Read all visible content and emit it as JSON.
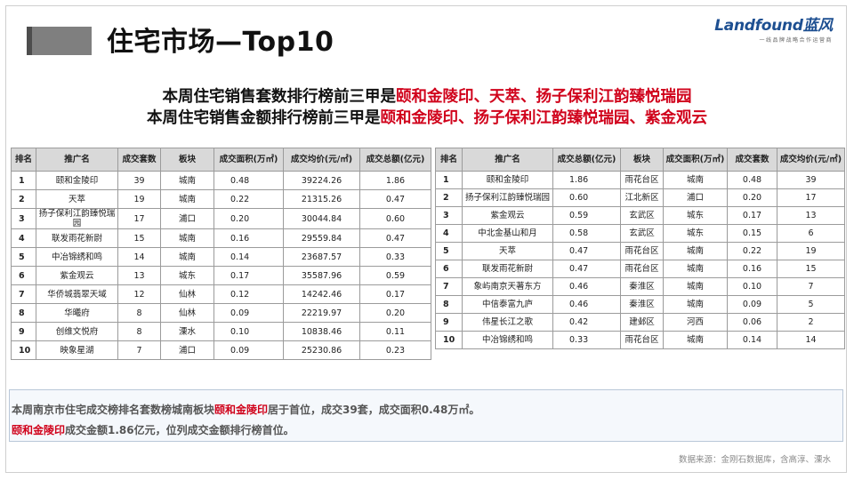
{
  "page": {
    "title": "住宅市场—Top10",
    "brand": {
      "name": "Landfound蓝风",
      "tagline": "一线品牌战略合作运营商"
    }
  },
  "headlines": {
    "line1": {
      "prefix": "本周住宅销售套数排行榜前三甲是",
      "highlight": "颐和金陵印、天萃、扬子保利江韵臻悦瑞园"
    },
    "line2": {
      "prefix": "本周住宅销售金额排行榜前三甲是",
      "highlight": "颐和金陵印、扬子保利江韵臻悦瑞园、紫金观云"
    }
  },
  "table_left": {
    "headers": [
      "排名",
      "推广名",
      "成交套数",
      "板块",
      "成交面积(万㎡)",
      "成交均价(元/㎡)",
      "成交总额(亿元)"
    ],
    "rows": [
      [
        "1",
        "颐和金陵印",
        "39",
        "城南",
        "0.48",
        "39224.26",
        "1.86"
      ],
      [
        "2",
        "天萃",
        "19",
        "城南",
        "0.22",
        "21315.26",
        "0.47"
      ],
      [
        "3",
        "扬子保利江韵臻悦瑞园",
        "17",
        "浦口",
        "0.20",
        "30044.84",
        "0.60"
      ],
      [
        "4",
        "联发雨花新尉",
        "15",
        "城南",
        "0.16",
        "29559.84",
        "0.47"
      ],
      [
        "5",
        "中冶锦绣和鸣",
        "14",
        "城南",
        "0.14",
        "23687.57",
        "0.33"
      ],
      [
        "6",
        "紫金观云",
        "13",
        "城东",
        "0.17",
        "35587.96",
        "0.59"
      ],
      [
        "7",
        "华侨城翡翠天域",
        "12",
        "仙林",
        "0.12",
        "14242.46",
        "0.17"
      ],
      [
        "8",
        "华曦府",
        "8",
        "仙林",
        "0.09",
        "22219.97",
        "0.20"
      ],
      [
        "9",
        "创维文悦府",
        "8",
        "溧水",
        "0.10",
        "10838.46",
        "0.11"
      ],
      [
        "10",
        "映象星湖",
        "7",
        "浦口",
        "0.09",
        "25230.86",
        "0.23"
      ]
    ]
  },
  "table_right": {
    "headers": [
      "排名",
      "推广名",
      "成交总额(亿元)",
      "板块",
      "成交面积(万㎡)",
      "成交套数",
      "成交均价(元/㎡)"
    ],
    "rows": [
      [
        "1",
        "颐和金陵印",
        "1.86",
        "雨花台区",
        "城南",
        "0.48",
        "39"
      ],
      [
        "2",
        "扬子保利江韵臻悦瑞园",
        "0.60",
        "江北新区",
        "浦口",
        "0.20",
        "17"
      ],
      [
        "3",
        "紫金观云",
        "0.59",
        "玄武区",
        "城东",
        "0.17",
        "13"
      ],
      [
        "4",
        "中北金基山和月",
        "0.58",
        "玄武区",
        "城东",
        "0.15",
        "6"
      ],
      [
        "5",
        "天萃",
        "0.47",
        "雨花台区",
        "城南",
        "0.22",
        "19"
      ],
      [
        "6",
        "联发雨花新尉",
        "0.47",
        "雨花台区",
        "城南",
        "0.16",
        "15"
      ],
      [
        "7",
        "象屿南京天著东方",
        "0.46",
        "秦淮区",
        "城南",
        "0.10",
        "7"
      ],
      [
        "8",
        "中信泰富九庐",
        "0.46",
        "秦淮区",
        "城南",
        "0.09",
        "5"
      ],
      [
        "9",
        "伟星长江之歌",
        "0.42",
        "建邺区",
        "河西",
        "0.06",
        "2"
      ],
      [
        "10",
        "中冶锦绣和鸣",
        "0.33",
        "雨花台区",
        "城南",
        "0.14",
        "14"
      ]
    ]
  },
  "summary": {
    "line1": {
      "prefix": "本周南京市住宅成交榜排名套数榜城南板块",
      "highlight": "颐和金陵印",
      "suffix": "居于首位，成交39套，成交面积0.48万㎡。"
    },
    "line2": {
      "highlight": "颐和金陵印",
      "suffix": "成交金额1.86亿元，位列成交金额排行榜首位。"
    }
  },
  "footnote": "数据来源：金刚石数据库，含高淳、溧水",
  "colors": {
    "highlight": "#d0021b",
    "header_bg": "#d9d9d9",
    "brand": "#1d4f91"
  }
}
